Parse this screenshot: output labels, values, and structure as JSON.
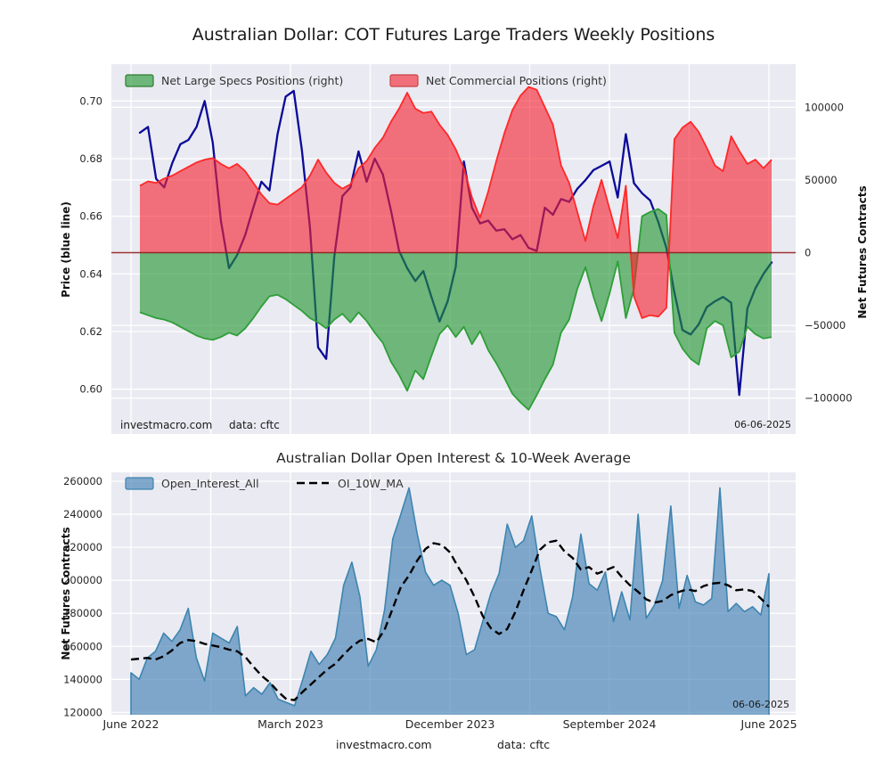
{
  "figure_dates": {
    "report_date": "06-06-2025"
  },
  "chart_data": [
    {
      "type": "combo_area_line",
      "title": "Australian Dollar: COT Futures Large Traders Weekly Positions",
      "legend_position": "upper-left-inside",
      "grid": true,
      "x_weeks": [
        0,
        2,
        4,
        6,
        8,
        10,
        12,
        14,
        16,
        18,
        20,
        22,
        24,
        26,
        28,
        30,
        32,
        34,
        36,
        38,
        40,
        42,
        44,
        46,
        48,
        50,
        52,
        54,
        56,
        58,
        60,
        62,
        64,
        66,
        68,
        70,
        72,
        74,
        76,
        78,
        80,
        82,
        84,
        86,
        88,
        90,
        92,
        94,
        96,
        98,
        100,
        102,
        104,
        106,
        108,
        110,
        112,
        114,
        116,
        118,
        120,
        122,
        124,
        126,
        128,
        130,
        132,
        134,
        136,
        138,
        140,
        142,
        144,
        146,
        148,
        150,
        152,
        154,
        156
      ],
      "x_tick_weeks": [
        0,
        39,
        78,
        117,
        156
      ],
      "x_tick_labels": [
        "June 2022",
        "March 2023",
        "December 2023",
        "September 2024",
        "June 2025"
      ],
      "left_axis": {
        "label": "Price (blue line)",
        "ticks": [
          0.6,
          0.62,
          0.64,
          0.66,
          0.68,
          0.7
        ],
        "range": [
          0.5845,
          0.7128
        ]
      },
      "right_axis": {
        "label": "Net Futures Contracts",
        "ticks": [
          -100000,
          -50000,
          0,
          50000,
          100000
        ],
        "range": [
          -124700,
          129600
        ]
      },
      "zero_line_color": "#8f1d1d",
      "series": [
        {
          "name": "Net Large Specs Positions (right)",
          "type": "area",
          "axis": "right",
          "color": "#2e9e38",
          "fill": "rgba(34,150,48,0.62)",
          "values": [
            -41000,
            -43000,
            -45000,
            -46000,
            -48000,
            -51000,
            -54000,
            -57000,
            -59000,
            -60000,
            -58000,
            -55000,
            -57000,
            -52000,
            -45000,
            -37000,
            -30000,
            -29000,
            -32000,
            -36000,
            -40000,
            -45000,
            -48000,
            -52000,
            -46000,
            -42000,
            -48000,
            -41000,
            -47000,
            -55000,
            -62000,
            -75000,
            -84000,
            -95000,
            -81000,
            -87000,
            -71000,
            -56000,
            -50000,
            -58000,
            -51000,
            -63000,
            -54000,
            -67000,
            -76000,
            -86000,
            -97000,
            -103000,
            -108000,
            -98000,
            -87000,
            -77000,
            -55000,
            -46000,
            -25000,
            -10000,
            -30000,
            -47000,
            -28000,
            -6000,
            -45000,
            -25000,
            25000,
            28000,
            30000,
            26000,
            -55000,
            -66000,
            -73000,
            -77000,
            -52000,
            -47000,
            -50000,
            -72000,
            -68000,
            -51000,
            -56000,
            -59000,
            -58000
          ]
        },
        {
          "name": "Net Commercial Positions (right)",
          "type": "area",
          "axis": "right",
          "color": "#ff2828",
          "fill": "rgba(246,36,49,0.62)",
          "values": [
            46000,
            49000,
            48000,
            51000,
            53000,
            56000,
            59000,
            62000,
            64000,
            65000,
            61000,
            58000,
            61000,
            56000,
            48000,
            40000,
            34000,
            33000,
            37000,
            41000,
            45000,
            53000,
            64000,
            55000,
            48000,
            44000,
            47000,
            58000,
            63000,
            72000,
            79000,
            90000,
            99000,
            110000,
            99000,
            96000,
            97000,
            88000,
            81000,
            71000,
            58000,
            38000,
            24000,
            42000,
            63000,
            82000,
            98000,
            108000,
            114000,
            112000,
            100000,
            88000,
            60000,
            48000,
            28000,
            8000,
            32000,
            50000,
            30000,
            10000,
            46000,
            -30000,
            -45000,
            -43000,
            -44000,
            -38000,
            78000,
            86000,
            90000,
            83000,
            72000,
            60000,
            56000,
            80000,
            70000,
            61000,
            64000,
            58000,
            64000
          ]
        },
        {
          "name": "Price",
          "type": "line",
          "axis": "left",
          "color": "#0a0a99",
          "values": [
            0.689,
            0.691,
            0.673,
            0.67,
            0.6785,
            0.685,
            0.6865,
            0.691,
            0.7,
            0.6855,
            0.6585,
            0.642,
            0.6465,
            0.6535,
            0.663,
            0.672,
            0.669,
            0.6885,
            0.7015,
            0.7035,
            0.683,
            0.656,
            0.6145,
            0.6105,
            0.646,
            0.667,
            0.67,
            0.6825,
            0.672,
            0.68,
            0.6745,
            0.662,
            0.648,
            0.642,
            0.6375,
            0.641,
            0.632,
            0.6235,
            0.6305,
            0.6425,
            0.679,
            0.663,
            0.6575,
            0.6585,
            0.655,
            0.6555,
            0.652,
            0.6535,
            0.649,
            0.648,
            0.663,
            0.6605,
            0.666,
            0.665,
            0.6695,
            0.6725,
            0.676,
            0.6775,
            0.679,
            0.6665,
            0.6885,
            0.6715,
            0.668,
            0.6655,
            0.658,
            0.649,
            0.6335,
            0.6205,
            0.619,
            0.6225,
            0.6285,
            0.6305,
            0.632,
            0.63,
            0.598,
            0.628,
            0.635,
            0.64,
            0.644
          ]
        }
      ],
      "annotations": {
        "watermark": "investmacro.com",
        "source": "data: cftc",
        "date": "06-06-2025"
      }
    },
    {
      "type": "area_line",
      "title": "Australian Dollar Open Interest & 10-Week Average",
      "legend_position": "upper-left-inside",
      "grid": true,
      "x_weeks": [
        0,
        2,
        4,
        6,
        8,
        10,
        12,
        14,
        16,
        18,
        20,
        22,
        24,
        26,
        28,
        30,
        32,
        34,
        36,
        38,
        40,
        42,
        44,
        46,
        48,
        50,
        52,
        54,
        56,
        58,
        60,
        62,
        64,
        66,
        68,
        70,
        72,
        74,
        76,
        78,
        80,
        82,
        84,
        86,
        88,
        90,
        92,
        94,
        96,
        98,
        100,
        102,
        104,
        106,
        108,
        110,
        112,
        114,
        116,
        118,
        120,
        122,
        124,
        126,
        128,
        130,
        132,
        134,
        136,
        138,
        140,
        142,
        144,
        146,
        148,
        150,
        152,
        154,
        156
      ],
      "x_tick_weeks": [
        0,
        39,
        78,
        117,
        156
      ],
      "x_tick_labels": [
        "June 2022",
        "March 2023",
        "December 2023",
        "September 2024",
        "June 2025"
      ],
      "y_axis": {
        "label": "Net Futures Contracts",
        "ticks": [
          120000,
          140000,
          160000,
          180000,
          200000,
          220000,
          240000,
          260000
        ],
        "range": [
          118900,
          265400
        ]
      },
      "series": [
        {
          "name": "Open_Interest_All",
          "type": "area",
          "color": "#3d85b0",
          "fill": "rgba(70,130,180,0.66)",
          "values": [
            144000,
            140000,
            153000,
            157000,
            168000,
            163000,
            170000,
            183000,
            153000,
            139000,
            168000,
            165000,
            162000,
            172000,
            130000,
            135000,
            131000,
            138000,
            128000,
            126000,
            124000,
            140000,
            157000,
            149000,
            155000,
            165000,
            197000,
            211000,
            190000,
            148000,
            158000,
            182000,
            225000,
            240000,
            256000,
            228000,
            205000,
            197000,
            200000,
            197000,
            180000,
            155000,
            158000,
            175000,
            192000,
            204000,
            234000,
            220000,
            224000,
            239000,
            207000,
            180000,
            178000,
            170000,
            190000,
            228000,
            198000,
            194000,
            205000,
            175000,
            193000,
            176000,
            240000,
            177000,
            185000,
            200000,
            245000,
            183000,
            203000,
            187000,
            185000,
            189000,
            256000,
            181000,
            186000,
            181000,
            184000,
            179000,
            204000
          ]
        },
        {
          "name": "OI_10W_MA",
          "type": "dashed_line",
          "color": "#000000",
          "values": [
            152000,
            152500,
            153000,
            152000,
            154000,
            157500,
            162000,
            163800,
            163200,
            161500,
            160500,
            159500,
            158000,
            157000,
            153500,
            147500,
            142000,
            138000,
            132500,
            128000,
            127500,
            132500,
            137000,
            141500,
            146000,
            149500,
            155000,
            160000,
            163500,
            164500,
            162500,
            170000,
            183000,
            196000,
            203000,
            212000,
            219000,
            222500,
            221500,
            217000,
            208000,
            200000,
            190000,
            178500,
            171000,
            167500,
            170500,
            181000,
            194000,
            206000,
            218500,
            223000,
            224000,
            217500,
            213500,
            206500,
            208000,
            204000,
            206000,
            208000,
            202000,
            197000,
            193000,
            188500,
            186500,
            187500,
            191000,
            193000,
            194500,
            193500,
            196500,
            198000,
            198500,
            197000,
            194000,
            194500,
            193500,
            189000,
            184000
          ]
        }
      ],
      "annotations": {
        "date": "06-06-2025"
      },
      "footer": {
        "watermark": "investmacro.com",
        "source": "data: cftc"
      }
    }
  ],
  "style": {
    "plot_bg": "#eaeaf2",
    "grid_color": "#ffffff",
    "figure_bg": "#ffffff"
  }
}
